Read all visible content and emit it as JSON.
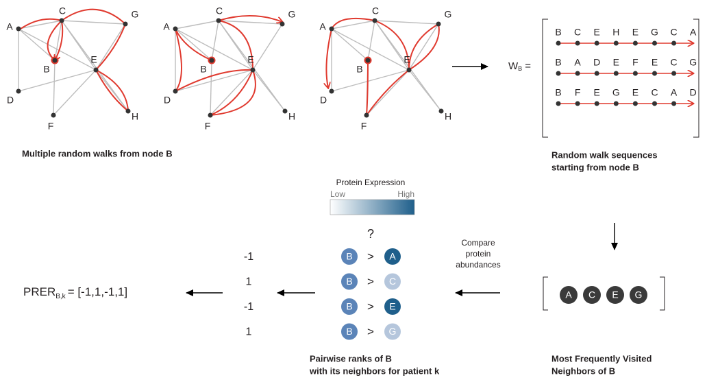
{
  "graph": {
    "nodes": [
      "A",
      "B",
      "C",
      "D",
      "E",
      "F",
      "G",
      "H"
    ],
    "caption": "Multiple random walks from node B"
  },
  "walks": {
    "symbol": "W",
    "subscript": "B",
    "equals": "=",
    "sequences": [
      [
        "B",
        "C",
        "E",
        "H",
        "E",
        "G",
        "C",
        "A"
      ],
      [
        "B",
        "A",
        "D",
        "E",
        "F",
        "E",
        "C",
        "G"
      ],
      [
        "B",
        "F",
        "E",
        "G",
        "E",
        "C",
        "A",
        "D"
      ]
    ],
    "caption": [
      "Random walk sequences",
      "starting from node B"
    ]
  },
  "neighbors": {
    "labels": [
      "A",
      "C",
      "E",
      "G"
    ],
    "caption": [
      "Most Frequently Visited",
      "Neighbors of B"
    ]
  },
  "compare": {
    "text": [
      "Compare",
      "protein",
      "abundances"
    ]
  },
  "legend": {
    "title": "Protein Expression",
    "low": "Low",
    "high": "High"
  },
  "question": "?",
  "pairs": {
    "left": "B",
    "operator": ">",
    "right": [
      "A",
      "C",
      "E",
      "G"
    ],
    "ranks": [
      -1,
      1,
      -1,
      1
    ],
    "caption": [
      "Pairwise ranks of B",
      "with its neighbors for patient k"
    ]
  },
  "prer": {
    "name": "PRER",
    "subscript": "B,k",
    "value": "= [-1,1,-1,1]"
  }
}
